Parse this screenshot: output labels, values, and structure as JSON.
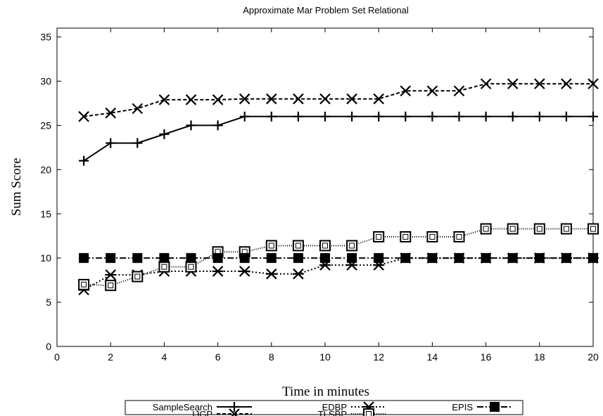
{
  "chart_data": {
    "type": "line",
    "title": "Approximate Mar Problem Set Relational",
    "xlabel": "Time in minutes",
    "ylabel": "Sum Score",
    "xlim": [
      0,
      20
    ],
    "ylim": [
      0,
      36
    ],
    "x_ticks": [
      0,
      2,
      4,
      6,
      8,
      10,
      12,
      14,
      16,
      18,
      20
    ],
    "y_ticks": [
      0,
      5,
      10,
      15,
      20,
      25,
      30,
      35
    ],
    "x_tick_labels": [
      "0",
      "2",
      "4",
      "6",
      "8",
      "10",
      "12",
      "14",
      "16",
      "18",
      "20"
    ],
    "y_tick_labels": [
      "0",
      "5",
      "10",
      "15",
      "20",
      "25",
      "30",
      "35"
    ],
    "grid": false,
    "legend_position": "bottom",
    "x": [
      1,
      2,
      3,
      4,
      5,
      6,
      7,
      8,
      9,
      10,
      11,
      12,
      13,
      14,
      15,
      16,
      17,
      18,
      19,
      20
    ],
    "series": [
      {
        "name": "SampleSearch",
        "marker": "plus",
        "dash": "solid",
        "values": [
          21,
          23,
          23,
          24,
          25,
          25,
          26,
          26,
          26,
          26,
          26,
          26,
          26,
          26,
          26,
          26,
          26,
          26,
          26,
          26
        ]
      },
      {
        "name": "IJGP",
        "marker": "x",
        "dash": "dashed",
        "values": [
          26,
          26.4,
          26.9,
          27.9,
          27.9,
          27.9,
          28,
          28,
          28,
          28,
          28,
          28,
          28.9,
          28.9,
          28.9,
          29.7,
          29.7,
          29.7,
          29.7,
          29.7
        ]
      },
      {
        "name": "EDBP",
        "marker": "asterisk",
        "dash": "dotted",
        "values": [
          6.4,
          8.1,
          8.1,
          8.5,
          8.5,
          8.5,
          8.5,
          8.2,
          8.2,
          9.2,
          9.2,
          9.2,
          10,
          10,
          10,
          10,
          10,
          10,
          10,
          10
        ]
      },
      {
        "name": "TLSBP",
        "marker": "square",
        "dash": "dotted-fine",
        "values": [
          7,
          6.9,
          7.9,
          9,
          9,
          10.7,
          10.7,
          11.4,
          11.4,
          11.4,
          11.4,
          12.4,
          12.4,
          12.4,
          12.4,
          13.3,
          13.3,
          13.3,
          13.3,
          13.3
        ]
      },
      {
        "name": "EPIS",
        "marker": "filled-square",
        "dash": "dash-dot",
        "values": [
          10,
          10,
          10,
          10,
          10,
          10,
          10,
          10,
          10,
          10,
          10,
          10,
          10,
          10,
          10,
          10,
          10,
          10,
          10,
          10
        ]
      }
    ]
  }
}
